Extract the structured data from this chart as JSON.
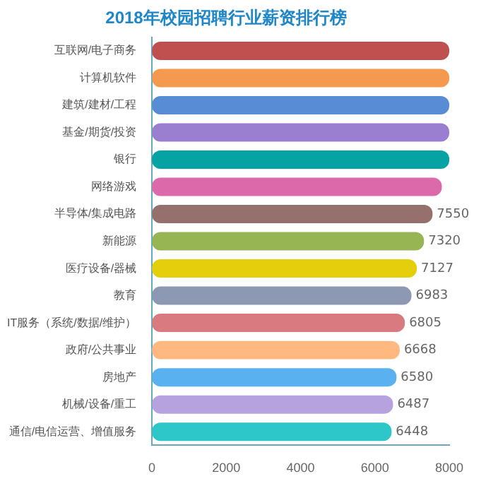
{
  "chart_data": {
    "type": "bar",
    "orientation": "horizontal",
    "title": "2018年校园招聘行业薪资排行榜",
    "categories": [
      "互联网/电子商务",
      "计算机软件",
      "建筑/建材/工程",
      "基金/期货/投资",
      "银行",
      "网络游戏",
      "半导体/集成电路",
      "新能源",
      "医疗设备/器械",
      "教育",
      "IT服务（系统/数据/维护）",
      "政府/公共事业",
      "房地产",
      "机械/设备/重工",
      "通信/电信运营、增值服务"
    ],
    "values": [
      8000,
      8000,
      8000,
      8000,
      8000,
      7800,
      7550,
      7320,
      7127,
      6983,
      6805,
      6668,
      6580,
      6487,
      6448
    ],
    "colors": [
      "#c05050",
      "#f5994e",
      "#588dd5",
      "#9a7fd1",
      "#07a2a4",
      "#dc69aa",
      "#95706d",
      "#97b552",
      "#e5cf0d",
      "#8d98b3",
      "#d87a80",
      "#ffb980",
      "#5ab1ef",
      "#b6a2de",
      "#2ec7c9"
    ],
    "value_labels": [
      null,
      null,
      null,
      null,
      null,
      null,
      "7550",
      "7320",
      "7127",
      "6983",
      "6805",
      "6668",
      "6580",
      "6487",
      "6448"
    ],
    "xlim": [
      0,
      8000
    ],
    "xticks": [
      0,
      2000,
      4000,
      6000,
      8000
    ],
    "grid": false,
    "legend": false
  }
}
